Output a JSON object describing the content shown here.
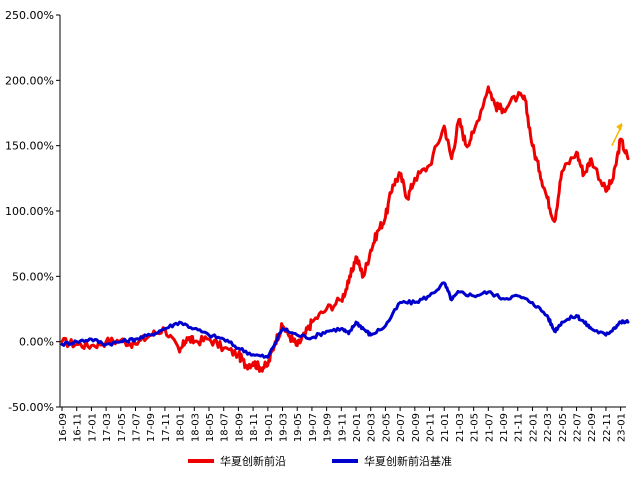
{
  "chart_data": {
    "type": "line",
    "ylim": [
      -50,
      250
    ],
    "y_ticks": [
      "-50.00%",
      "0.00%",
      "50.00%",
      "100.00%",
      "150.00%",
      "200.00%",
      "250.00%"
    ],
    "y_tick_values": [
      -50,
      0,
      50,
      100,
      150,
      200,
      250
    ],
    "x_ticks": [
      "16-09",
      "16-11",
      "17-01",
      "17-03",
      "17-05",
      "17-07",
      "17-09",
      "17-11",
      "18-01",
      "18-03",
      "18-05",
      "18-07",
      "18-09",
      "18-11",
      "19-01",
      "19-03",
      "19-05",
      "19-07",
      "19-09",
      "19-11",
      "20-01",
      "20-03",
      "20-05",
      "20-07",
      "20-09",
      "20-11",
      "21-01",
      "21-03",
      "21-05",
      "21-07",
      "21-09",
      "21-11",
      "22-01",
      "22-03",
      "22-05",
      "22-07",
      "22-09",
      "22-11",
      "23-01"
    ],
    "grid": false,
    "legend_position": "bottom",
    "series": [
      {
        "name": "华夏创新前沿",
        "color": "#ee0000",
        "points": [
          [
            0,
            0
          ],
          [
            1,
            -2
          ],
          [
            2,
            -3
          ],
          [
            3,
            0
          ],
          [
            4,
            1
          ],
          [
            5,
            -2
          ],
          [
            6,
            5
          ],
          [
            7,
            10
          ],
          [
            8,
            -8
          ],
          [
            8.5,
            3
          ],
          [
            9,
            0
          ],
          [
            10,
            2
          ],
          [
            11,
            -5
          ],
          [
            12,
            -10
          ],
          [
            12.5,
            -18
          ],
          [
            13,
            -16
          ],
          [
            13.5,
            -20
          ],
          [
            14,
            -18
          ],
          [
            14.5,
            0
          ],
          [
            15,
            12
          ],
          [
            15.5,
            4
          ],
          [
            16,
            -3
          ],
          [
            16.5,
            5
          ],
          [
            17,
            15
          ],
          [
            18,
            25
          ],
          [
            19,
            32
          ],
          [
            19.5,
            45
          ],
          [
            20,
            65
          ],
          [
            20.5,
            50
          ],
          [
            21,
            70
          ],
          [
            21.5,
            85
          ],
          [
            22,
            95
          ],
          [
            22.5,
            120
          ],
          [
            23,
            128
          ],
          [
            23.5,
            110
          ],
          [
            24,
            125
          ],
          [
            25,
            135
          ],
          [
            26,
            165
          ],
          [
            26.5,
            140
          ],
          [
            27,
            170
          ],
          [
            27.5,
            150
          ],
          [
            28,
            160
          ],
          [
            29,
            195
          ],
          [
            29.5,
            180
          ],
          [
            30,
            178
          ],
          [
            31,
            188
          ],
          [
            31.5,
            185
          ],
          [
            32,
            150
          ],
          [
            32.5,
            130
          ],
          [
            33,
            110
          ],
          [
            33.5,
            92
          ],
          [
            34,
            130
          ],
          [
            35,
            145
          ],
          [
            35.5,
            128
          ],
          [
            36,
            140
          ],
          [
            37,
            115
          ],
          [
            37.5,
            125
          ],
          [
            38,
            155
          ],
          [
            38.5,
            140
          ]
        ]
      },
      {
        "name": "华夏创新前沿基准",
        "color": "#0000cc",
        "points": [
          [
            0,
            -2
          ],
          [
            1,
            0
          ],
          [
            2,
            2
          ],
          [
            3,
            -2
          ],
          [
            4,
            0
          ],
          [
            5,
            2
          ],
          [
            6,
            5
          ],
          [
            7,
            10
          ],
          [
            8,
            15
          ],
          [
            9,
            10
          ],
          [
            10,
            5
          ],
          [
            11,
            2
          ],
          [
            12,
            -5
          ],
          [
            13,
            -10
          ],
          [
            14,
            -12
          ],
          [
            15,
            10
          ],
          [
            16,
            5
          ],
          [
            17,
            3
          ],
          [
            18,
            8
          ],
          [
            19,
            10
          ],
          [
            19.5,
            6
          ],
          [
            20,
            15
          ],
          [
            20.5,
            10
          ],
          [
            21,
            5
          ],
          [
            22,
            12
          ],
          [
            23,
            30
          ],
          [
            24,
            30
          ],
          [
            25,
            35
          ],
          [
            26,
            45
          ],
          [
            26.5,
            32
          ],
          [
            27,
            38
          ],
          [
            28,
            35
          ],
          [
            29,
            38
          ],
          [
            30,
            33
          ],
          [
            31,
            35
          ],
          [
            32,
            30
          ],
          [
            33,
            20
          ],
          [
            33.5,
            8
          ],
          [
            34,
            15
          ],
          [
            35,
            20
          ],
          [
            35.5,
            15
          ],
          [
            36,
            10
          ],
          [
            37,
            5
          ],
          [
            37.5,
            10
          ],
          [
            38,
            15
          ],
          [
            38.5,
            15
          ]
        ]
      }
    ]
  }
}
